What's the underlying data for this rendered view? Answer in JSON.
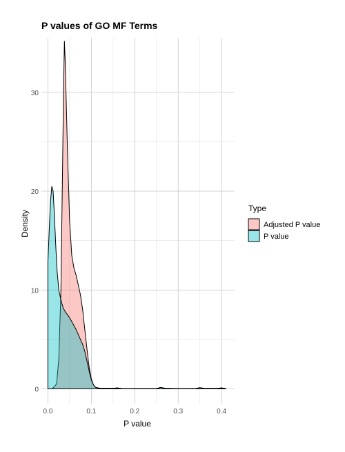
{
  "chart_data": {
    "type": "area",
    "title": "P values of GO MF Terms",
    "xlabel": "P value",
    "ylabel": "Density",
    "xlim": [
      -0.015,
      0.43
    ],
    "ylim": [
      -1.5,
      35.5
    ],
    "x_ticks": [
      0.0,
      0.1,
      0.2,
      0.3,
      0.4
    ],
    "x_tick_labels": [
      "0.0",
      "0.1",
      "0.2",
      "0.3",
      "0.4"
    ],
    "y_ticks": [
      0,
      10,
      20,
      30
    ],
    "y_tick_labels": [
      "0",
      "10",
      "20",
      "30"
    ],
    "grid": true,
    "legend": {
      "title": "Type",
      "position": "right"
    },
    "series": [
      {
        "name": "Adjusted P value",
        "fill": "#f8766d",
        "points": [
          [
            0.0,
            0
          ],
          [
            0.01,
            0
          ],
          [
            0.02,
            0.5
          ],
          [
            0.025,
            3
          ],
          [
            0.03,
            10
          ],
          [
            0.033,
            20
          ],
          [
            0.036,
            30
          ],
          [
            0.038,
            35.2
          ],
          [
            0.04,
            33
          ],
          [
            0.045,
            24
          ],
          [
            0.05,
            17
          ],
          [
            0.055,
            13.5
          ],
          [
            0.06,
            12.2
          ],
          [
            0.065,
            11.5
          ],
          [
            0.07,
            10.5
          ],
          [
            0.075,
            9.5
          ],
          [
            0.08,
            8
          ],
          [
            0.085,
            6
          ],
          [
            0.09,
            4
          ],
          [
            0.095,
            2.2
          ],
          [
            0.1,
            1
          ],
          [
            0.105,
            0.4
          ],
          [
            0.11,
            0.15
          ],
          [
            0.12,
            0.05
          ],
          [
            0.15,
            0.05
          ],
          [
            0.16,
            0.1
          ],
          [
            0.17,
            0.03
          ],
          [
            0.2,
            0.02
          ],
          [
            0.25,
            0.03
          ],
          [
            0.26,
            0.15
          ],
          [
            0.27,
            0.05
          ],
          [
            0.3,
            0.02
          ],
          [
            0.34,
            0.03
          ],
          [
            0.35,
            0.12
          ],
          [
            0.36,
            0.04
          ],
          [
            0.39,
            0.04
          ],
          [
            0.4,
            0.1
          ],
          [
            0.41,
            0.02
          ]
        ]
      },
      {
        "name": "P value",
        "fill": "#00bfc4",
        "points": [
          [
            0.0,
            12.8
          ],
          [
            0.003,
            16
          ],
          [
            0.006,
            19
          ],
          [
            0.009,
            20.5
          ],
          [
            0.012,
            20
          ],
          [
            0.015,
            17.5
          ],
          [
            0.018,
            14.5
          ],
          [
            0.021,
            12
          ],
          [
            0.025,
            10
          ],
          [
            0.03,
            9
          ],
          [
            0.035,
            8.2
          ],
          [
            0.04,
            7.8
          ],
          [
            0.045,
            7.5
          ],
          [
            0.05,
            7.2
          ],
          [
            0.055,
            6.8
          ],
          [
            0.06,
            6.4
          ],
          [
            0.065,
            6
          ],
          [
            0.07,
            5.5
          ],
          [
            0.075,
            5
          ],
          [
            0.08,
            4.5
          ],
          [
            0.085,
            3.8
          ],
          [
            0.09,
            2.8
          ],
          [
            0.095,
            1.8
          ],
          [
            0.1,
            0.9
          ],
          [
            0.105,
            0.4
          ],
          [
            0.11,
            0.15
          ],
          [
            0.12,
            0.05
          ],
          [
            0.15,
            0.05
          ],
          [
            0.16,
            0.1
          ],
          [
            0.17,
            0.03
          ],
          [
            0.2,
            0.02
          ],
          [
            0.25,
            0.03
          ],
          [
            0.26,
            0.15
          ],
          [
            0.27,
            0.05
          ],
          [
            0.3,
            0.02
          ],
          [
            0.34,
            0.03
          ],
          [
            0.35,
            0.12
          ],
          [
            0.36,
            0.04
          ],
          [
            0.39,
            0.04
          ],
          [
            0.4,
            0.1
          ],
          [
            0.41,
            0.02
          ]
        ]
      }
    ]
  }
}
